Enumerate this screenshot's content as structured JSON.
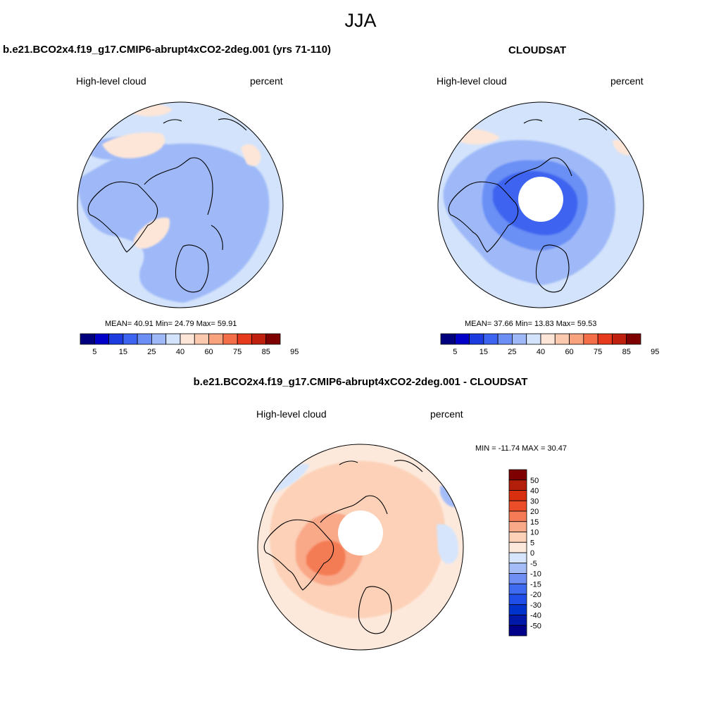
{
  "figure": {
    "title": "JJA"
  },
  "palette": {
    "abs": [
      "#00007f",
      "#0000c8",
      "#1c3ce0",
      "#3c64f0",
      "#6b8ff5",
      "#9fb9f8",
      "#d3e3fb",
      "#fde6d8",
      "#fbc9ad",
      "#f8a27e",
      "#f46f48",
      "#e73a1c",
      "#bf200d",
      "#7f0000"
    ],
    "diff": [
      "#00008b",
      "#0019a8",
      "#0033cc",
      "#1f4fe8",
      "#3f6bf0",
      "#6f8ff5",
      "#a4bdf9",
      "#d6e5fb",
      "#fde9dc",
      "#fcd1b8",
      "#f9a888",
      "#f47b55",
      "#ec4e2a",
      "#d8300f",
      "#b21e0a",
      "#7f0000"
    ]
  },
  "panels": [
    {
      "id": "model",
      "title": "b.e21.BCO2x4.f19_g17.CMIP6-abrupt4xCO2-2deg.001 (yrs 71-110)",
      "subtitle_left": "High-level cloud",
      "subtitle_right": "percent",
      "stats_text": "MEAN=  40.91  Min=  24.79  Max=  59.91",
      "mean": 40.91,
      "min": 24.79,
      "max": 59.91,
      "colorbar_labels": [
        "5",
        "15",
        "25",
        "40",
        "60",
        "75",
        "85",
        "95"
      ]
    },
    {
      "id": "obs",
      "title": "CLOUDSAT",
      "subtitle_left": "High-level cloud",
      "subtitle_right": "percent",
      "stats_text": "MEAN=  37.66  Min=  13.83  Max=  59.53",
      "mean": 37.66,
      "min": 13.83,
      "max": 59.53,
      "colorbar_labels": [
        "5",
        "15",
        "25",
        "40",
        "60",
        "75",
        "85",
        "95"
      ]
    },
    {
      "id": "diff",
      "title": "b.e21.BCO2x4.f19_g17.CMIP6-abrupt4xCO2-2deg.001 - CLOUDSAT",
      "subtitle_left": "High-level cloud",
      "subtitle_right": "percent",
      "stats_text": "MIN = -11.74 MAX =  30.47",
      "min": -11.74,
      "max": 30.47,
      "colorbar_labels": [
        "50",
        "40",
        "30",
        "20",
        "15",
        "10",
        "5",
        "0",
        "-5",
        "-10",
        "-15",
        "-20",
        "-30",
        "-40",
        "-50"
      ]
    }
  ]
}
